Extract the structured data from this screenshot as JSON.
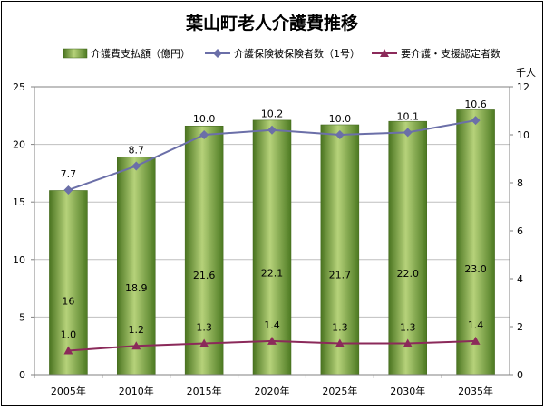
{
  "chart_data": {
    "type": "bar",
    "title": "葉山町老人介護費推移",
    "categories": [
      "2005年",
      "2010年",
      "2015年",
      "2020年",
      "2025年",
      "2030年",
      "2035年"
    ],
    "y_left": {
      "ylim": [
        0,
        25
      ],
      "ticks": [
        "0",
        "5",
        "10",
        "15",
        "20",
        "25"
      ]
    },
    "y_right": {
      "unit": "千人",
      "ylim": [
        0,
        12
      ],
      "ticks": [
        "0",
        "2",
        "4",
        "6",
        "8",
        "10",
        "12"
      ]
    },
    "series": [
      {
        "name": "介護費支払額（億円）",
        "kind": "bar",
        "axis": "left",
        "color": "#6f9a32",
        "values": [
          16,
          18.9,
          21.6,
          22.1,
          21.7,
          22.0,
          23.0
        ],
        "labels": [
          "16",
          "18.9",
          "21.6",
          "22.1",
          "21.7",
          "22.0",
          "23.0"
        ]
      },
      {
        "name": "介護保険被保険者数（1号）",
        "kind": "line",
        "axis": "right",
        "color": "#6b6fa8",
        "values": [
          7.7,
          8.7,
          10.0,
          10.2,
          10.0,
          10.1,
          10.6
        ],
        "labels": [
          "7.7",
          "8.7",
          "10.0",
          "10.2",
          "10.0",
          "10.1",
          "10.6"
        ]
      },
      {
        "name": "要介護・支援認定者数",
        "kind": "line",
        "axis": "right",
        "color": "#8b2a5a",
        "values": [
          1.0,
          1.2,
          1.3,
          1.4,
          1.3,
          1.3,
          1.4
        ],
        "labels": [
          "1.0",
          "1.2",
          "1.3",
          "1.4",
          "1.3",
          "1.3",
          "1.4"
        ]
      }
    ],
    "grid": true,
    "legend_position": "top"
  }
}
